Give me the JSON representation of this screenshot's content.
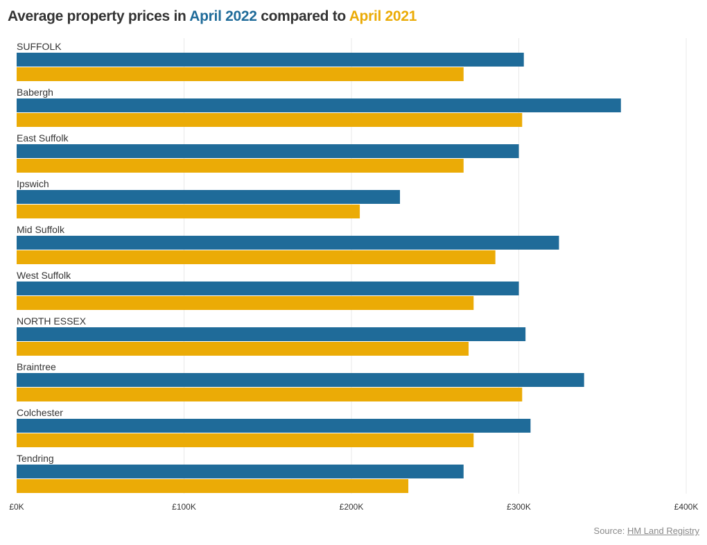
{
  "title": {
    "prefix": "Average property prices in ",
    "series1": "April 2022",
    "middle": " compared to ",
    "series2": "April 2021"
  },
  "source": {
    "label": "Source: ",
    "link": "HM Land Registry"
  },
  "colors": {
    "april_2022": "#1f6b99",
    "april_2021": "#ebab06",
    "grid": "#e8e8e8",
    "text": "#333333"
  },
  "chart_data": {
    "type": "bar",
    "orientation": "horizontal",
    "title": "Average property prices in April 2022 compared to April 2021",
    "categories": [
      "SUFFOLK",
      "Babergh",
      "East Suffolk",
      "Ipswich",
      "Mid Suffolk",
      "West Suffolk",
      "NORTH ESSEX",
      "Braintree",
      "Colchester",
      "Tendring"
    ],
    "series": [
      {
        "name": "April 2022",
        "color": "#1f6b99",
        "values": [
          303,
          361,
          300,
          229,
          324,
          300,
          304,
          339,
          307,
          267
        ]
      },
      {
        "name": "April 2021",
        "color": "#ebab06",
        "values": [
          267,
          302,
          267,
          205,
          286,
          273,
          270,
          302,
          273,
          234
        ]
      }
    ],
    "unit": "£K",
    "xlim": [
      0,
      400
    ],
    "xticks": [
      0,
      100,
      200,
      300,
      400
    ],
    "xtick_labels": [
      "£0K",
      "£100K",
      "£200K",
      "£300K",
      "£400K"
    ],
    "grid": true,
    "legend": "in title"
  }
}
